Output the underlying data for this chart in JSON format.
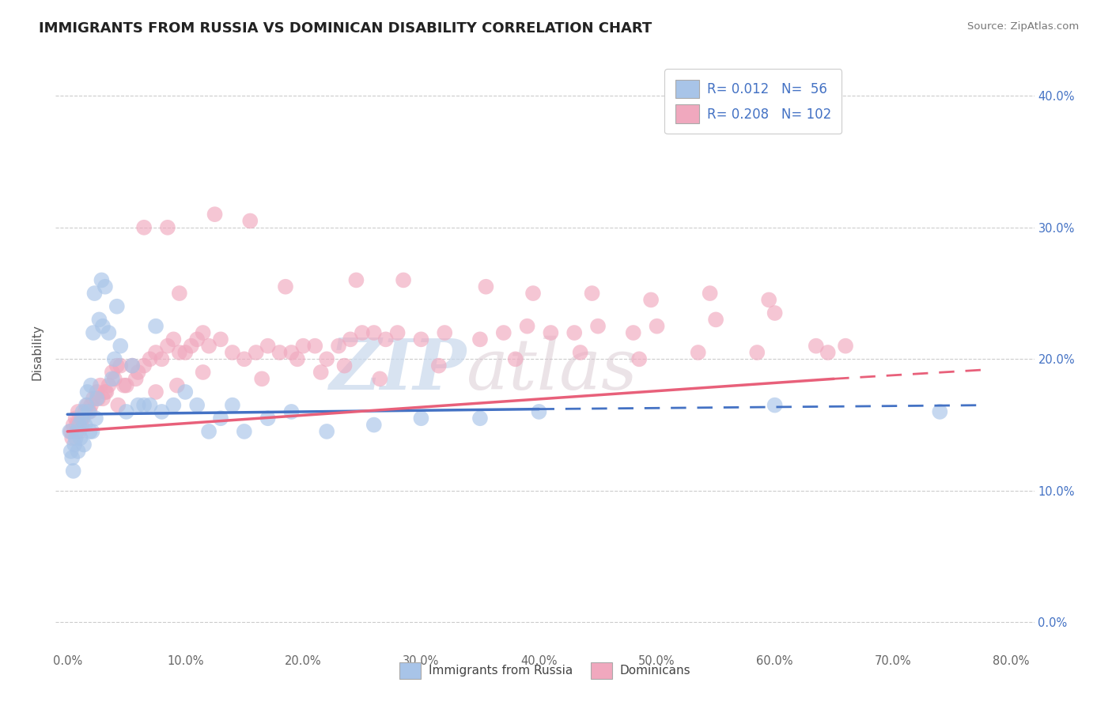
{
  "title": "IMMIGRANTS FROM RUSSIA VS DOMINICAN DISABILITY CORRELATION CHART",
  "source": "Source: ZipAtlas.com",
  "ylabel": "Disability",
  "color_russia": "#a8c4e8",
  "color_dominican": "#f0a8be",
  "color_russia_line": "#4472c4",
  "color_dominican_line": "#e8607a",
  "color_text_blue": "#4472c4",
  "color_grid": "#cccccc",
  "watermark_zip": "ZIP",
  "watermark_atlas": "atlas",
  "russia_x": [
    0.2,
    0.3,
    0.4,
    0.5,
    0.6,
    0.7,
    0.8,
    0.9,
    1.0,
    1.1,
    1.2,
    1.3,
    1.4,
    1.5,
    1.6,
    1.7,
    1.8,
    1.9,
    2.0,
    2.1,
    2.2,
    2.3,
    2.4,
    2.5,
    2.7,
    2.9,
    3.0,
    3.2,
    3.5,
    3.8,
    4.0,
    4.2,
    4.5,
    5.0,
    5.5,
    6.0,
    6.5,
    7.0,
    7.5,
    8.0,
    9.0,
    10.0,
    11.0,
    12.0,
    13.0,
    14.0,
    15.0,
    17.0,
    19.0,
    22.0,
    26.0,
    30.0,
    35.0,
    40.0,
    60.0,
    74.0
  ],
  "russia_y": [
    14.5,
    13.0,
    12.5,
    11.5,
    13.5,
    14.0,
    14.5,
    13.0,
    15.0,
    14.0,
    15.5,
    16.0,
    13.5,
    15.0,
    16.5,
    17.5,
    16.0,
    14.5,
    18.0,
    14.5,
    22.0,
    25.0,
    15.5,
    17.0,
    23.0,
    26.0,
    22.5,
    25.5,
    22.0,
    18.5,
    20.0,
    24.0,
    21.0,
    16.0,
    19.5,
    16.5,
    16.5,
    16.5,
    22.5,
    16.0,
    16.5,
    17.5,
    16.5,
    14.5,
    15.5,
    16.5,
    14.5,
    15.5,
    16.0,
    14.5,
    15.0,
    15.5,
    15.5,
    16.0,
    16.5,
    16.0
  ],
  "dominican_x": [
    0.3,
    0.5,
    0.7,
    0.9,
    1.0,
    1.2,
    1.5,
    1.7,
    2.0,
    2.2,
    2.5,
    2.8,
    3.0,
    3.2,
    3.5,
    3.8,
    4.0,
    4.2,
    4.5,
    5.0,
    5.5,
    6.0,
    6.5,
    7.0,
    7.5,
    8.0,
    8.5,
    9.0,
    9.5,
    10.0,
    10.5,
    11.0,
    11.5,
    12.0,
    13.0,
    14.0,
    15.0,
    16.0,
    17.0,
    18.0,
    19.0,
    20.0,
    21.0,
    22.0,
    23.0,
    24.0,
    25.0,
    26.0,
    27.0,
    28.0,
    30.0,
    32.0,
    35.0,
    37.0,
    39.0,
    41.0,
    43.0,
    45.0,
    48.0,
    50.0,
    55.0,
    60.0,
    66.0,
    9.5,
    18.5,
    24.5,
    28.5,
    35.5,
    39.5,
    44.5,
    49.5,
    54.5,
    59.5,
    64.5,
    6.5,
    8.5,
    12.5,
    15.5,
    19.5,
    23.5,
    0.4,
    0.8,
    1.3,
    1.9,
    2.6,
    3.3,
    4.8,
    5.8,
    7.5,
    11.5,
    16.5,
    21.5,
    26.5,
    31.5,
    38.0,
    43.5,
    48.5,
    53.5,
    58.5,
    63.5,
    4.3,
    9.3
  ],
  "dominican_y": [
    14.5,
    15.0,
    15.5,
    16.0,
    14.5,
    15.0,
    16.0,
    16.5,
    16.5,
    17.0,
    17.5,
    18.0,
    17.0,
    17.5,
    18.0,
    19.0,
    18.5,
    19.5,
    19.5,
    18.0,
    19.5,
    19.0,
    19.5,
    20.0,
    20.5,
    20.0,
    21.0,
    21.5,
    20.5,
    20.5,
    21.0,
    21.5,
    22.0,
    21.0,
    21.5,
    20.5,
    20.0,
    20.5,
    21.0,
    20.5,
    20.5,
    21.0,
    21.0,
    20.0,
    21.0,
    21.5,
    22.0,
    22.0,
    21.5,
    22.0,
    21.5,
    22.0,
    21.5,
    22.0,
    22.5,
    22.0,
    22.0,
    22.5,
    22.0,
    22.5,
    23.0,
    23.5,
    21.0,
    25.0,
    25.5,
    26.0,
    26.0,
    25.5,
    25.0,
    25.0,
    24.5,
    25.0,
    24.5,
    20.5,
    30.0,
    30.0,
    31.0,
    30.5,
    20.0,
    19.5,
    14.0,
    15.0,
    15.5,
    16.0,
    17.0,
    17.5,
    18.0,
    18.5,
    17.5,
    19.0,
    18.5,
    19.0,
    18.5,
    19.5,
    20.0,
    20.5,
    20.0,
    20.5,
    20.5,
    21.0,
    16.5,
    18.0
  ],
  "russia_line_x0": 0.0,
  "russia_line_x1": 40.0,
  "russia_line_y0": 15.8,
  "russia_line_y1": 16.2,
  "russia_dash_x0": 40.0,
  "russia_dash_x1": 78.0,
  "russia_dash_y0": 16.2,
  "russia_dash_y1": 16.5,
  "dominican_line_x0": 0.0,
  "dominican_line_x1": 65.0,
  "dominican_line_y0": 14.5,
  "dominican_line_y1": 18.5,
  "dominican_dash_x0": 65.0,
  "dominican_dash_x1": 78.0,
  "dominican_dash_y0": 18.5,
  "dominican_dash_y1": 19.2,
  "xlim": [
    0,
    80
  ],
  "ylim": [
    0,
    42
  ],
  "xticks": [
    0,
    10,
    20,
    30,
    40,
    50,
    60,
    70,
    80
  ],
  "yticks": [
    0,
    10,
    20,
    30,
    40
  ],
  "title_fontsize": 13,
  "legend_r1": "R= 0.012",
  "legend_n1": "N=  56",
  "legend_r2": "R= 0.208",
  "legend_n2": "N= 102"
}
